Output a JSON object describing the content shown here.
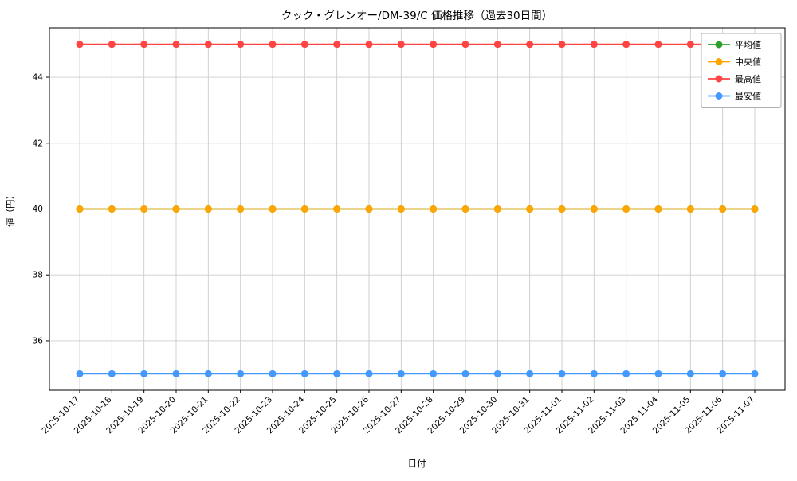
{
  "chart_data": {
    "type": "line",
    "title": "クック・グレンオー/DM-39/C 価格推移（過去30日間）",
    "xlabel": "日付",
    "ylabel": "値（円）",
    "grid": true,
    "legend_position": "upper right",
    "ylim": [
      34.5,
      45.5
    ],
    "yticks": [
      36,
      38,
      40,
      42,
      44
    ],
    "x": [
      "2025-10-17",
      "2025-10-18",
      "2025-10-19",
      "2025-10-20",
      "2025-10-21",
      "2025-10-22",
      "2025-10-23",
      "2025-10-24",
      "2025-10-25",
      "2025-10-26",
      "2025-10-27",
      "2025-10-28",
      "2025-10-29",
      "2025-10-30",
      "2025-10-31",
      "2025-11-01",
      "2025-11-02",
      "2025-11-03",
      "2025-11-04",
      "2025-11-05",
      "2025-11-06",
      "2025-11-07"
    ],
    "series": [
      {
        "id": "average",
        "name": "平均値",
        "color": "#2ca02c",
        "values": [
          40,
          40,
          40,
          40,
          40,
          40,
          40,
          40,
          40,
          40,
          40,
          40,
          40,
          40,
          40,
          40,
          40,
          40,
          40,
          40,
          40,
          40
        ]
      },
      {
        "id": "median",
        "name": "中央値",
        "color": "#ffa500",
        "values": [
          40,
          40,
          40,
          40,
          40,
          40,
          40,
          40,
          40,
          40,
          40,
          40,
          40,
          40,
          40,
          40,
          40,
          40,
          40,
          40,
          40,
          40
        ]
      },
      {
        "id": "max",
        "name": "最高値",
        "color": "#ff4444",
        "values": [
          45,
          45,
          45,
          45,
          45,
          45,
          45,
          45,
          45,
          45,
          45,
          45,
          45,
          45,
          45,
          45,
          45,
          45,
          45,
          45,
          45,
          45
        ]
      },
      {
        "id": "min",
        "name": "最安値",
        "color": "#4499ff",
        "values": [
          35,
          35,
          35,
          35,
          35,
          35,
          35,
          35,
          35,
          35,
          35,
          35,
          35,
          35,
          35,
          35,
          35,
          35,
          35,
          35,
          35,
          35
        ]
      }
    ]
  }
}
